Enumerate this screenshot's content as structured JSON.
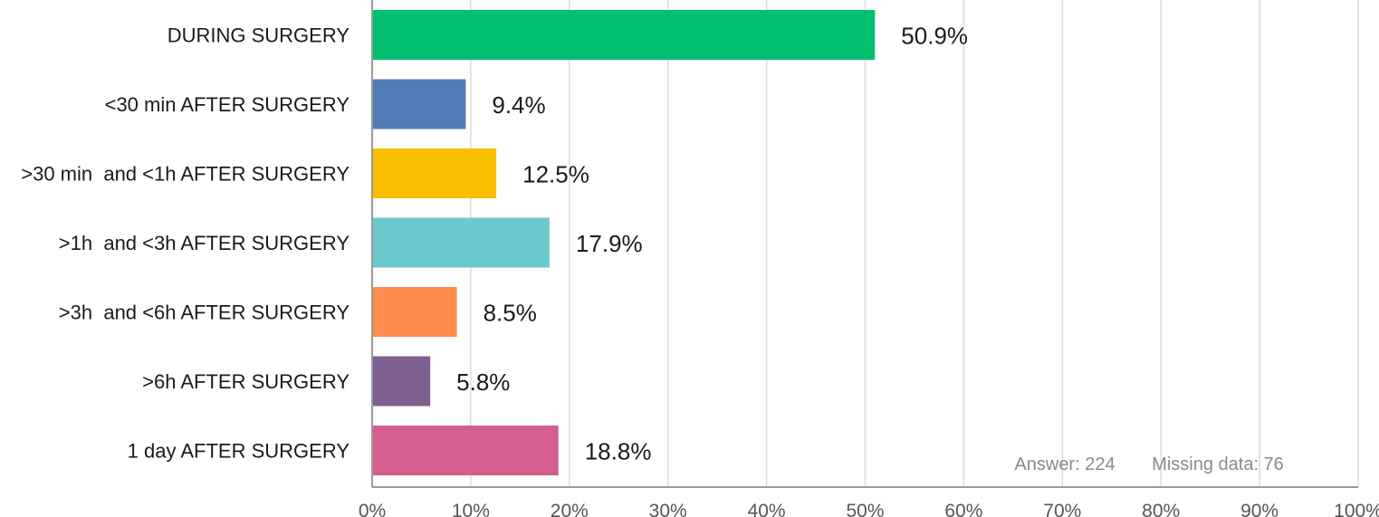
{
  "chart_data": {
    "type": "bar",
    "orientation": "horizontal",
    "categories": [
      "DURING SURGERY",
      "<30 min AFTER SURGERY",
      ">30 min  and <1h AFTER SURGERY",
      ">1h  and <3h AFTER SURGERY",
      ">3h  and <6h AFTER SURGERY",
      ">6h AFTER SURGERY",
      "1 day AFTER SURGERY"
    ],
    "values": [
      50.9,
      9.4,
      12.5,
      17.9,
      8.5,
      5.8,
      18.8
    ],
    "value_labels": [
      "50.9%",
      "9.4%",
      "12.5%",
      "17.9%",
      "8.5%",
      "5.8%",
      "18.8%"
    ],
    "colors": [
      "#00bf6f",
      "#507cb6",
      "#f9be00",
      "#6bc8cd",
      "#ff8b4f",
      "#7f5f90",
      "#d25f90"
    ],
    "x_ticks": [
      "0%",
      "10%",
      "20%",
      "30%",
      "40%",
      "50%",
      "60%",
      "70%",
      "80%",
      "90%",
      "100%"
    ],
    "xlim": [
      0,
      100
    ],
    "grid": "vertical",
    "title": "",
    "xlabel": "",
    "ylabel": ""
  },
  "annotation": {
    "answer": "Answer: 224",
    "missing": "Missing data: 76"
  }
}
